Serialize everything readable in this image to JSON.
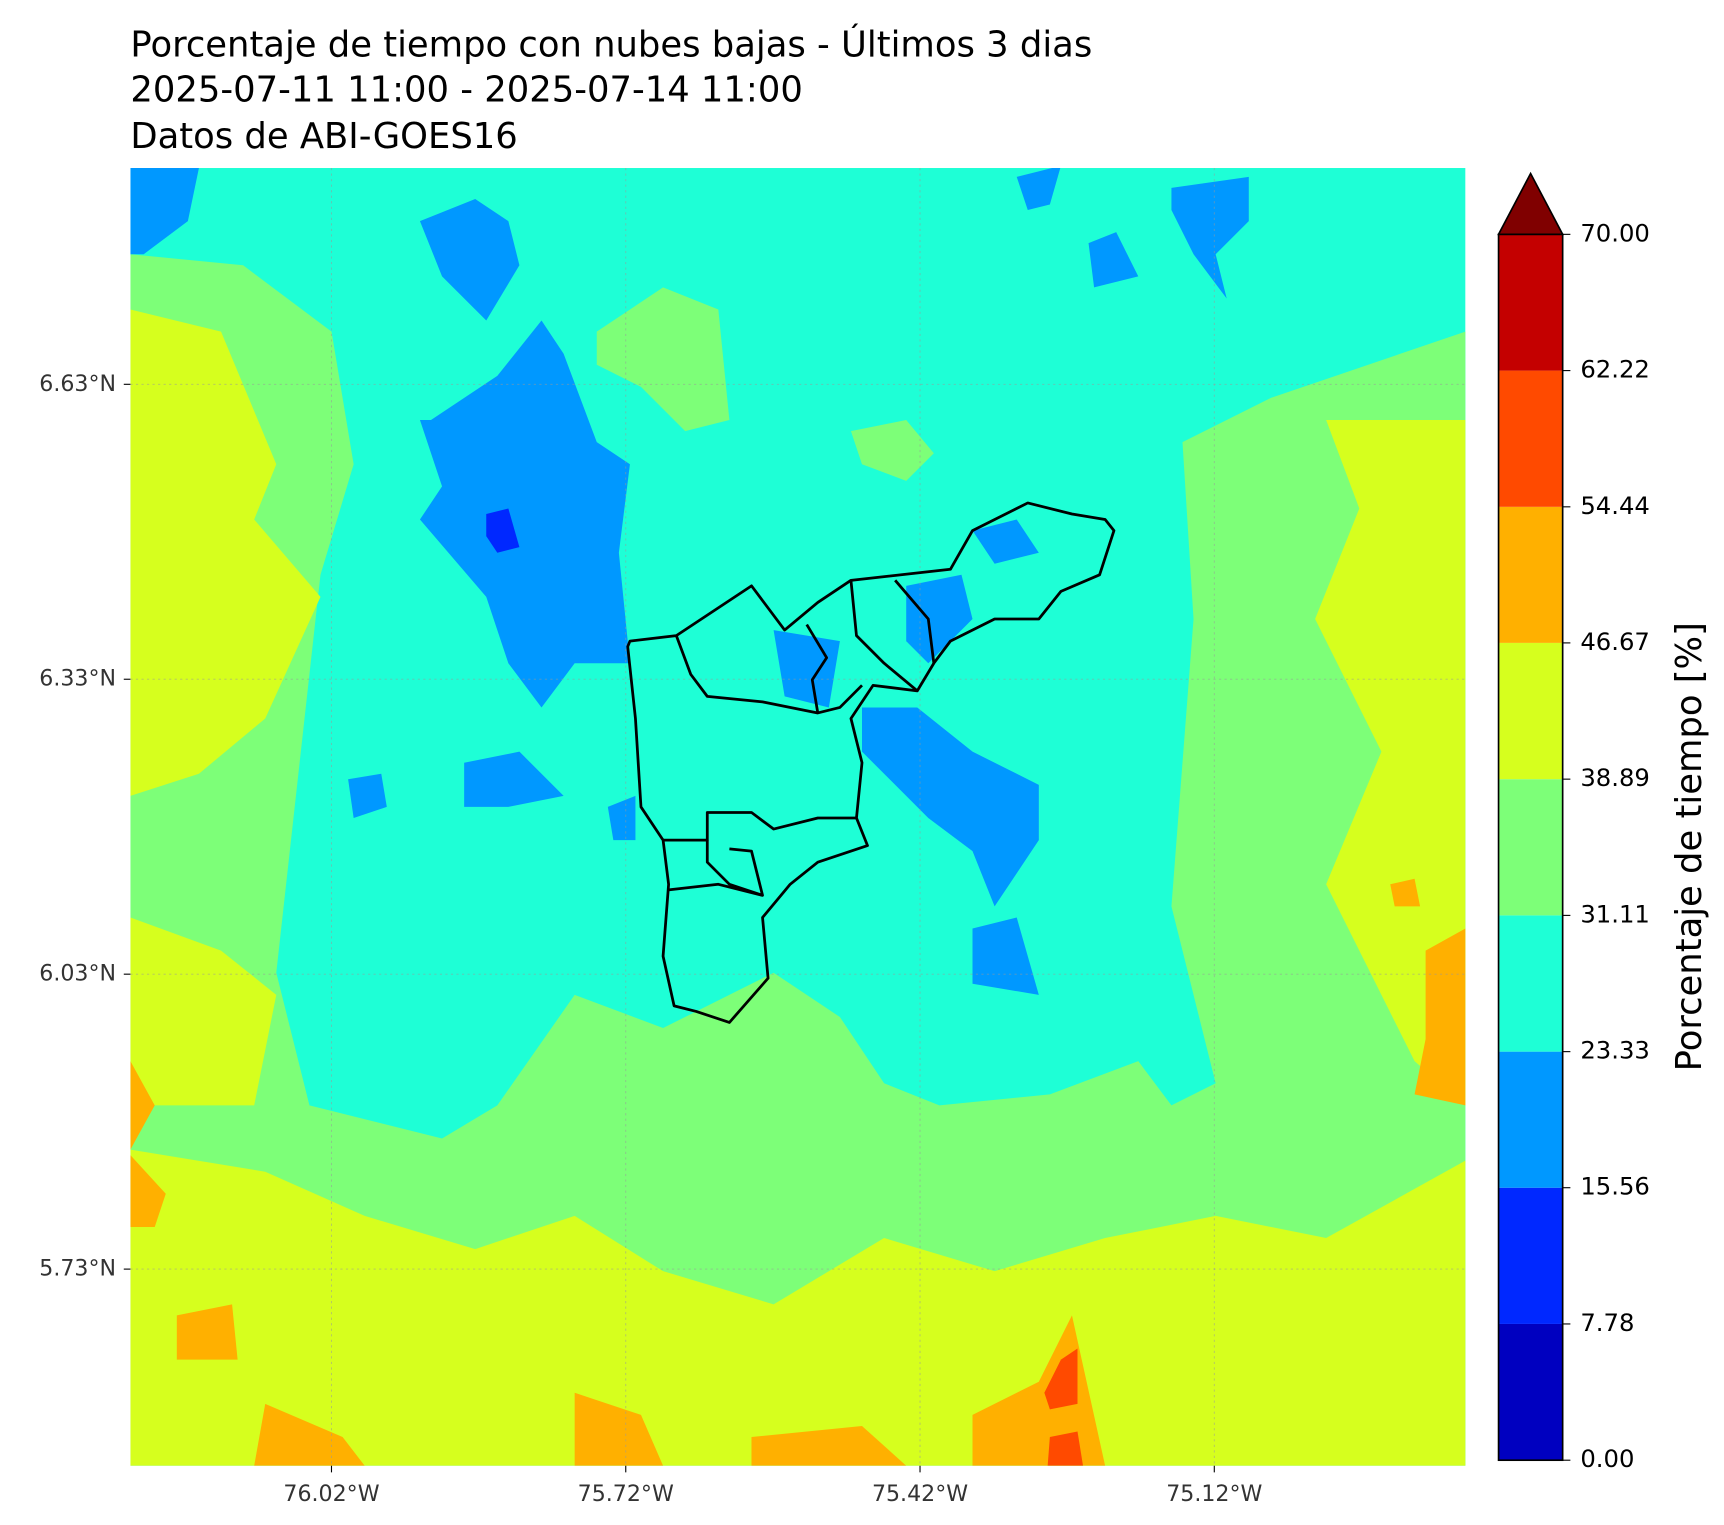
{
  "chart_data": {
    "type": "contour_map",
    "title": "Porcentaje de tiempo con nubes bajas - Últimos 3 dias",
    "subtitle": [
      "2025-07-11 11:00 - 2025-07-14 11:00",
      "Datos de ABI-GOES16"
    ],
    "xlim": [
      -76.225,
      -74.864
    ],
    "ylim": [
      5.53,
      6.85
    ],
    "xticks": [
      {
        "value": -76.02,
        "label": "76.02°W"
      },
      {
        "value": -75.72,
        "label": "75.72°W"
      },
      {
        "value": -75.42,
        "label": "75.42°W"
      },
      {
        "value": -75.12,
        "label": "75.12°W"
      }
    ],
    "yticks": [
      {
        "value": 6.63,
        "label": "6.63°N"
      },
      {
        "value": 6.33,
        "label": "6.33°N"
      },
      {
        "value": 6.03,
        "label": "6.03°N"
      },
      {
        "value": 5.73,
        "label": "5.73°N"
      }
    ],
    "grid": true,
    "colorbar": {
      "label": "Porcentaje de tiempo [%]",
      "levels": [
        {
          "value": 0,
          "label": "0.00"
        },
        7.78,
        15.56,
        23.33,
        31.11,
        38.89,
        46.67,
        54.44,
        62.22,
        {
          "value": 70,
          "label": "70.00"
        }
      ],
      "colors": [
        "#0000c0",
        "#0028ff",
        "#0098ff",
        "#1effd6",
        "#7dff78",
        "#d6ff1e",
        "#ffb000",
        "#ff4a00",
        "#c40000"
      ],
      "extend_color": "#800000"
    }
  }
}
